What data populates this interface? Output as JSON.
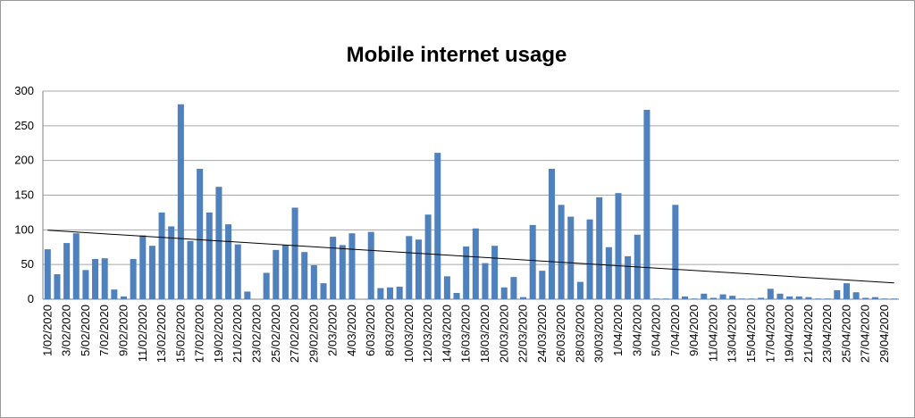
{
  "chart_data": {
    "type": "bar",
    "title": "Mobile internet usage",
    "xlabel": "",
    "ylabel": "",
    "ylim": [
      0,
      300
    ],
    "yticks": [
      0,
      50,
      100,
      150,
      200,
      250,
      300
    ],
    "grid": true,
    "legend": "none",
    "bar_color": "#4f81bd",
    "trendline": {
      "type": "linear",
      "color": "#000000"
    },
    "tick_labels": [
      "1/02/2020",
      "3/02/2020",
      "5/02/2020",
      "7/02/2020",
      "9/02/2020",
      "11/02/2020",
      "13/02/2020",
      "15/02/2020",
      "17/02/2020",
      "19/02/2020",
      "21/02/2020",
      "23/02/2020",
      "25/02/2020",
      "27/02/2020",
      "29/02/2020",
      "2/03/2020",
      "4/03/2020",
      "6/03/2020",
      "8/03/2020",
      "10/03/2020",
      "12/03/2020",
      "14/03/2020",
      "16/03/2020",
      "18/03/2020",
      "20/03/2020",
      "22/03/2020",
      "24/03/2020",
      "26/03/2020",
      "28/03/2020",
      "30/03/2020",
      "1/04/2020",
      "3/04/2020",
      "5/04/2020",
      "7/04/2020",
      "9/04/2020",
      "11/04/2020",
      "13/04/2020",
      "15/04/2020",
      "17/04/2020",
      "19/04/2020",
      "21/04/2020",
      "23/04/2020",
      "25/04/2020",
      "27/04/2020",
      "29/04/2020"
    ],
    "values": [
      72,
      36,
      81,
      95,
      42,
      58,
      59,
      14,
      4,
      58,
      92,
      77,
      125,
      105,
      281,
      84,
      188,
      125,
      162,
      108,
      79,
      11,
      0,
      38,
      71,
      78,
      132,
      68,
      49,
      23,
      90,
      78,
      95,
      0,
      97,
      16,
      17,
      18,
      91,
      86,
      122,
      211,
      33,
      9,
      76,
      102,
      52,
      77,
      17,
      32,
      3,
      107,
      41,
      188,
      136,
      119,
      25,
      115,
      147,
      75,
      153,
      62,
      93,
      273,
      1,
      1,
      136,
      4,
      1,
      8,
      2,
      7,
      5,
      1,
      1,
      2,
      15,
      8,
      4,
      4,
      3,
      1,
      1,
      13,
      23,
      10,
      2,
      3,
      1,
      1
    ]
  }
}
